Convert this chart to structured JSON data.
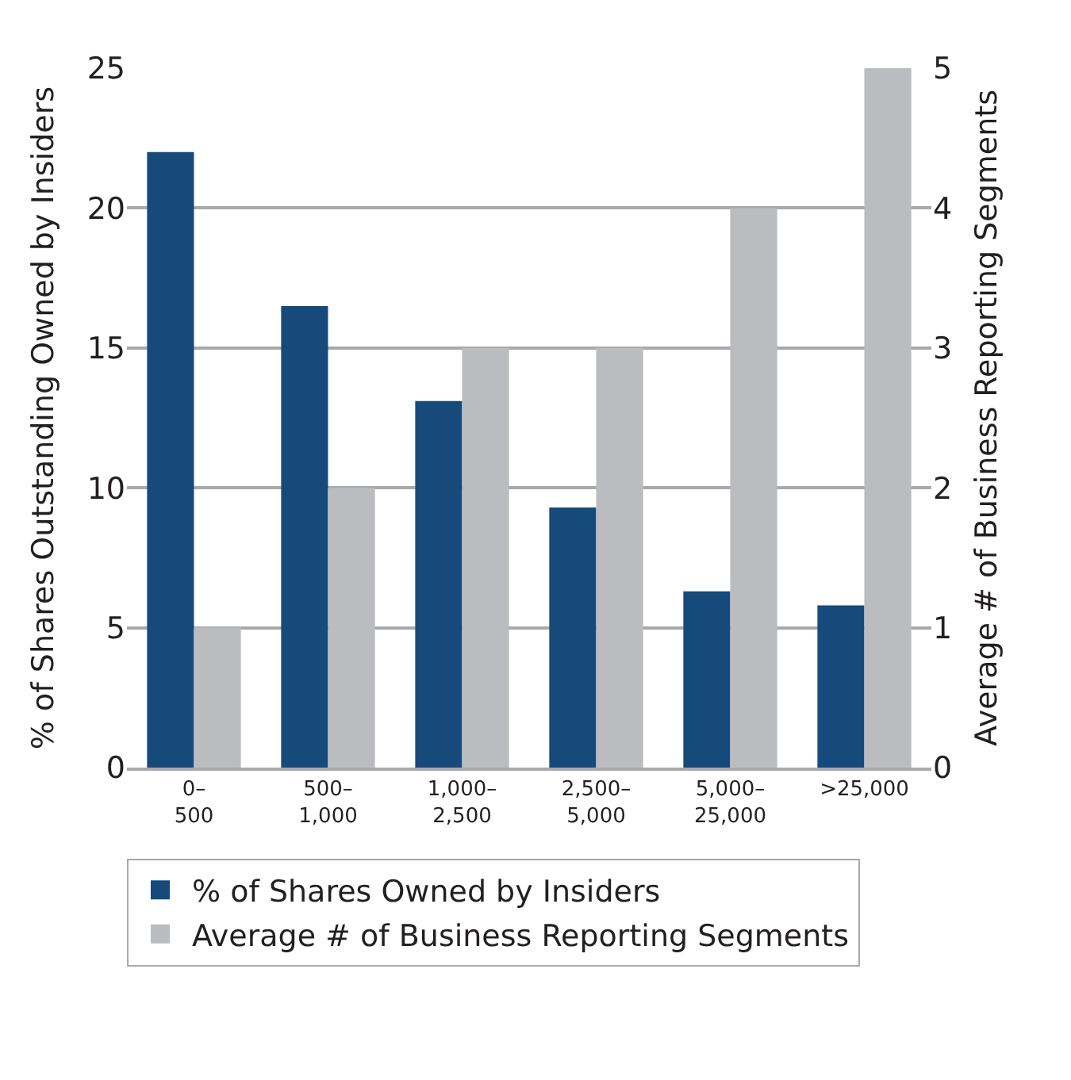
{
  "chart_data": {
    "type": "bar",
    "ylabel": "% of Shares Outstanding Owned by Insiders",
    "y2label": "Average # of Business Reporting Segments",
    "categories": [
      "0–\n500",
      "500–\n1,000",
      "1,000–\n2,500",
      "2,500–\n5,000",
      "5,000–\n25,000",
      ">25,000"
    ],
    "series": [
      {
        "name": "% of Shares Owned by Insiders",
        "color": "#164a7b",
        "values": [
          22.0,
          16.5,
          13.1,
          9.3,
          6.3,
          5.8
        ]
      },
      {
        "name": "Average # of Business Reporting Segments",
        "color": "#bbbcc0",
        "values": [
          1,
          2,
          3,
          3,
          4,
          5
        ],
        "axis": "y2"
      }
    ],
    "ylim": [
      0,
      25
    ],
    "yticks": [
      0,
      5,
      10,
      15,
      20,
      25
    ],
    "y2lim": [
      0,
      5
    ],
    "y2ticks": [
      0,
      1,
      2,
      3,
      4,
      5
    ],
    "grid": "y",
    "legend": "bottom"
  }
}
